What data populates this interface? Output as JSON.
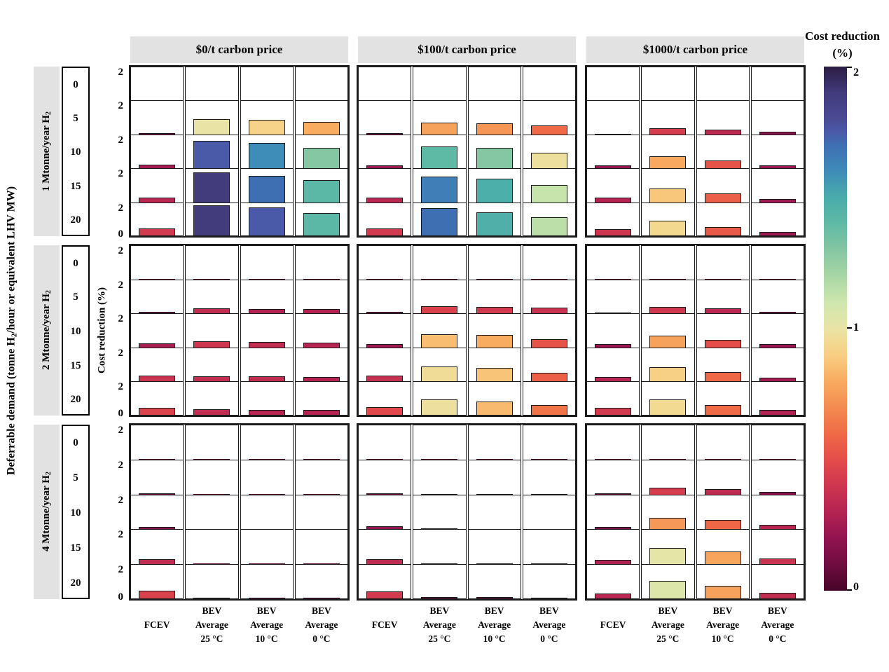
{
  "header": {
    "col_titles": [
      "$0/t carbon price",
      "$100/t carbon price",
      "$1000/t carbon price"
    ]
  },
  "left_axis": {
    "label_pre": "Deferrable demand (tonne H",
    "label_sub": "2",
    "label_post": "/hour or equivalent LHV MW)"
  },
  "y_axis": {
    "label": "Cost reduction (%)",
    "tick_top": "2",
    "tick_bottom": "0"
  },
  "row_groups": [
    {
      "label_pre": "1 Mtonne/year H",
      "label_sub": "2",
      "deferrable_ticks": [
        "0",
        "5",
        "10",
        "15",
        "20"
      ]
    },
    {
      "label_pre": "2 Mtonne/year H",
      "label_sub": "2",
      "deferrable_ticks": [
        "0",
        "5",
        "10",
        "15",
        "20"
      ]
    },
    {
      "label_pre": "4 Mtonne/year H",
      "label_sub": "2",
      "deferrable_ticks": [
        "0",
        "5",
        "10",
        "15",
        "20"
      ]
    }
  ],
  "x_axis": {
    "labels": [
      [
        "FCEV"
      ],
      [
        "BEV",
        "Average",
        "25 °C"
      ],
      [
        "BEV",
        "Average",
        "10 °C"
      ],
      [
        "BEV",
        "Average",
        "0 °C"
      ]
    ]
  },
  "colorbar": {
    "title_line1": "Cost reduction",
    "title_line2": "(%)",
    "ticks": [
      "2",
      "1",
      "0"
    ],
    "range": [
      0,
      2
    ],
    "stops": [
      {
        "v": 0.0,
        "c": "#470529"
      },
      {
        "v": 0.1,
        "c": "#6F0C40"
      },
      {
        "v": 0.2,
        "c": "#921350"
      },
      {
        "v": 0.3,
        "c": "#B42352"
      },
      {
        "v": 0.4,
        "c": "#CE3650"
      },
      {
        "v": 0.5,
        "c": "#E44D4A"
      },
      {
        "v": 0.6,
        "c": "#EF6A46"
      },
      {
        "v": 0.7,
        "c": "#F48B51"
      },
      {
        "v": 0.8,
        "c": "#F8AC60"
      },
      {
        "v": 0.9,
        "c": "#F8CE83"
      },
      {
        "v": 0.95,
        "c": "#F2DA93"
      },
      {
        "v": 1.0,
        "c": "#E9E4A5"
      },
      {
        "v": 1.1,
        "c": "#CFE7AF"
      },
      {
        "v": 1.2,
        "c": "#A8D6A5"
      },
      {
        "v": 1.3,
        "c": "#85C6A3"
      },
      {
        "v": 1.4,
        "c": "#5FBAA5"
      },
      {
        "v": 1.5,
        "c": "#49ACAB"
      },
      {
        "v": 1.6,
        "c": "#3E8CB8"
      },
      {
        "v": 1.7,
        "c": "#3F6FB3"
      },
      {
        "v": 1.75,
        "c": "#4A5AA8"
      },
      {
        "v": 1.8,
        "c": "#4A4A94"
      },
      {
        "v": 1.9,
        "c": "#423B7C"
      },
      {
        "v": 2.0,
        "c": "#2B1C42"
      }
    ]
  },
  "chart_data": {
    "type": "bar",
    "title": "",
    "ylabel": "Cost reduction (%)",
    "ylim": [
      0,
      2
    ],
    "grid": false,
    "colorbar_label": "Cost reduction (%)",
    "colorbar_range": [
      0,
      2
    ],
    "color_encoding": "bar color maps the same cost-reduction value onto the 0-2 colorbar",
    "col_groups": [
      "$0/t carbon price",
      "$100/t carbon price",
      "$1000/t carbon price"
    ],
    "row_groups": [
      "1 Mtonne/year H2",
      "2 Mtonne/year H2",
      "4 Mtonne/year H2"
    ],
    "deferrable_levels": [
      0,
      5,
      10,
      15,
      20
    ],
    "series_labels": [
      "FCEV",
      "BEV Average 25 °C",
      "BEV Average 10 °C",
      "BEV Average 0 °C"
    ],
    "values_order": "values[row_group][col_group][deferrable_level][series]",
    "values": [
      [
        [
          [
            0.02,
            0.02,
            0.02,
            0.02
          ],
          [
            0.1,
            1.0,
            0.92,
            0.8
          ],
          [
            0.25,
            1.75,
            1.6,
            1.3
          ],
          [
            0.32,
            1.9,
            1.7,
            1.42
          ],
          [
            0.42,
            1.9,
            1.75,
            1.42
          ]
        ],
        [
          [
            0.02,
            0.02,
            0.02,
            0.02
          ],
          [
            0.1,
            0.77,
            0.73,
            0.6
          ],
          [
            0.22,
            1.4,
            1.3,
            0.98
          ],
          [
            0.32,
            1.65,
            1.48,
            1.12
          ],
          [
            0.42,
            1.7,
            1.47,
            1.15
          ]
        ],
        [
          [
            0.02,
            0.02,
            0.02,
            0.02
          ],
          [
            0.07,
            0.43,
            0.33,
            0.18
          ],
          [
            0.2,
            0.79,
            0.52,
            0.22
          ],
          [
            0.3,
            0.88,
            0.56,
            0.24
          ],
          [
            0.4,
            0.94,
            0.54,
            0.24
          ]
        ]
      ],
      [
        [
          [
            0.02,
            0.02,
            0.02,
            0.02
          ],
          [
            0.1,
            0.35,
            0.3,
            0.3
          ],
          [
            0.27,
            0.4,
            0.35,
            0.31
          ],
          [
            0.39,
            0.36,
            0.35,
            0.3
          ],
          [
            0.46,
            0.35,
            0.31,
            0.3
          ]
        ],
        [
          [
            0.02,
            0.02,
            0.02,
            0.02
          ],
          [
            0.1,
            0.45,
            0.42,
            0.38
          ],
          [
            0.24,
            0.85,
            0.8,
            0.52
          ],
          [
            0.37,
            0.96,
            0.87,
            0.56
          ],
          [
            0.48,
            0.98,
            0.84,
            0.63
          ]
        ],
        [
          [
            0.02,
            0.02,
            0.02,
            0.02
          ],
          [
            0.08,
            0.41,
            0.32,
            0.12
          ],
          [
            0.22,
            0.77,
            0.5,
            0.22
          ],
          [
            0.31,
            0.91,
            0.59,
            0.25
          ],
          [
            0.42,
            0.95,
            0.6,
            0.29
          ]
        ]
      ],
      [
        [
          [
            0.02,
            0.02,
            0.02,
            0.02
          ],
          [
            0.08,
            0.02,
            0.02,
            0.02
          ],
          [
            0.18,
            0.02,
            0.02,
            0.02
          ],
          [
            0.35,
            0.02,
            0.02,
            0.02
          ],
          [
            0.45,
            0.04,
            0.02,
            0.02
          ]
        ],
        [
          [
            0.02,
            0.02,
            0.02,
            0.02
          ],
          [
            0.1,
            0.06,
            0.05,
            0.05
          ],
          [
            0.2,
            0.08,
            0.05,
            0.05
          ],
          [
            0.34,
            0.08,
            0.05,
            0.05
          ],
          [
            0.42,
            0.08,
            0.07,
            0.05
          ]
        ],
        [
          [
            0.02,
            0.02,
            0.02,
            0.02
          ],
          [
            0.07,
            0.43,
            0.34,
            0.18
          ],
          [
            0.15,
            0.74,
            0.59,
            0.31
          ],
          [
            0.29,
            1.02,
            0.78,
            0.39
          ],
          [
            0.32,
            1.05,
            0.77,
            0.35
          ]
        ]
      ]
    ]
  }
}
